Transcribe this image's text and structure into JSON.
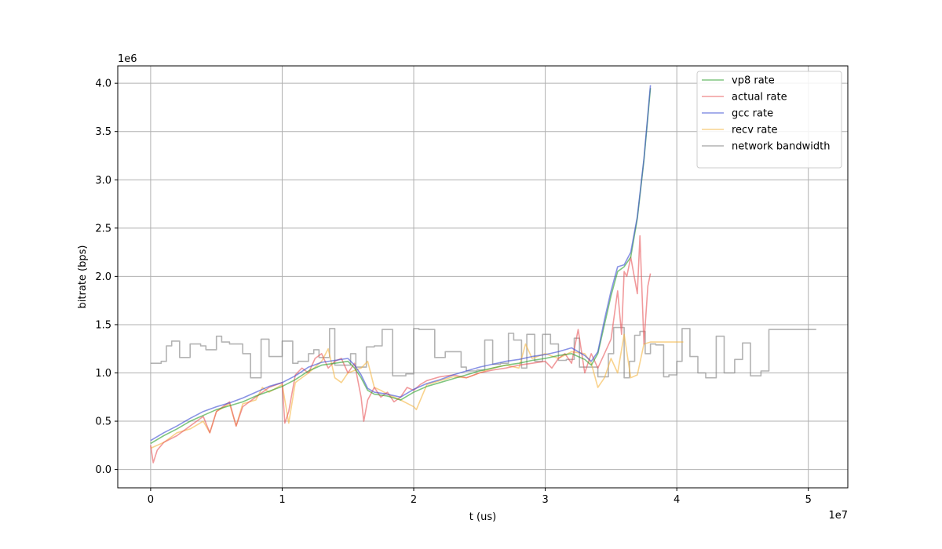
{
  "chart_data": {
    "type": "line",
    "title": "",
    "xlabel": "t (us)",
    "ylabel": "bitrate (bps)",
    "x_offset_label": "1e7",
    "y_offset_label": "1e6",
    "xlim": [
      -0.25,
      5.3
    ],
    "ylim": [
      -0.19,
      4.18
    ],
    "x_ticks": [
      0,
      1,
      2,
      3,
      4,
      5
    ],
    "x_tick_labels": [
      "0",
      "1",
      "2",
      "3",
      "4",
      "5"
    ],
    "y_ticks": [
      0,
      0.5,
      1,
      1.5,
      2,
      2.5,
      3,
      3.5,
      4
    ],
    "y_tick_labels": [
      "0.0",
      "0.5",
      "1.0",
      "1.5",
      "2.0",
      "2.5",
      "3.0",
      "3.5",
      "4.0"
    ],
    "grid": true,
    "legend_position": "top-right",
    "units_note": "x values in units of 1e7 us, y values in units of 1e6 bps",
    "series": [
      {
        "name": "vp8 rate",
        "color": "#2ca02c",
        "x": [
          0,
          0.1,
          0.2,
          0.3,
          0.4,
          0.5,
          0.6,
          0.7,
          0.8,
          0.9,
          1.0,
          1.1,
          1.2,
          1.3,
          1.4,
          1.5,
          1.55,
          1.6,
          1.65,
          1.7,
          1.8,
          1.9,
          2.0,
          2.1,
          2.2,
          2.3,
          2.4,
          2.5,
          2.6,
          2.7,
          2.8,
          2.9,
          3.0,
          3.1,
          3.2,
          3.3,
          3.35,
          3.4,
          3.45,
          3.5,
          3.55,
          3.6,
          3.65,
          3.7,
          3.75,
          3.8
        ],
        "y": [
          0.27,
          0.35,
          0.42,
          0.5,
          0.56,
          0.62,
          0.66,
          0.7,
          0.76,
          0.81,
          0.86,
          0.93,
          1.02,
          1.08,
          1.1,
          1.12,
          1.05,
          0.95,
          0.82,
          0.78,
          0.76,
          0.72,
          0.8,
          0.86,
          0.9,
          0.94,
          0.98,
          1.02,
          1.05,
          1.08,
          1.1,
          1.13,
          1.15,
          1.18,
          1.2,
          1.14,
          1.08,
          1.2,
          1.5,
          1.8,
          2.05,
          2.1,
          2.2,
          2.6,
          3.2,
          3.95
        ]
      },
      {
        "name": "actual rate",
        "color": "#e8575a",
        "x": [
          0,
          0.02,
          0.05,
          0.1,
          0.2,
          0.3,
          0.35,
          0.4,
          0.45,
          0.5,
          0.6,
          0.65,
          0.7,
          0.8,
          0.9,
          1.0,
          1.02,
          1.05,
          1.1,
          1.15,
          1.2,
          1.25,
          1.3,
          1.35,
          1.4,
          1.45,
          1.5,
          1.55,
          1.6,
          1.62,
          1.65,
          1.7,
          1.75,
          1.8,
          1.85,
          1.9,
          1.95,
          2.0,
          2.05,
          2.1,
          2.2,
          2.3,
          2.4,
          2.5,
          2.6,
          2.7,
          2.8,
          2.9,
          3.0,
          3.05,
          3.1,
          3.15,
          3.2,
          3.25,
          3.3,
          3.35,
          3.4,
          3.45,
          3.5,
          3.55,
          3.58,
          3.6,
          3.62,
          3.65,
          3.7,
          3.72,
          3.75,
          3.78,
          3.8
        ],
        "y": [
          0.25,
          0.07,
          0.2,
          0.28,
          0.35,
          0.45,
          0.5,
          0.55,
          0.38,
          0.6,
          0.7,
          0.45,
          0.65,
          0.75,
          0.85,
          0.9,
          0.48,
          0.6,
          0.98,
          1.05,
          1.0,
          1.15,
          1.2,
          1.05,
          1.12,
          1.15,
          1.0,
          1.1,
          0.75,
          0.5,
          0.72,
          0.85,
          0.75,
          0.8,
          0.7,
          0.75,
          0.85,
          0.82,
          0.88,
          0.92,
          0.96,
          0.98,
          0.95,
          1.0,
          1.03,
          1.05,
          1.08,
          1.1,
          1.12,
          1.05,
          1.15,
          1.2,
          1.1,
          1.45,
          1.0,
          1.2,
          1.05,
          1.2,
          1.35,
          1.85,
          1.4,
          2.05,
          2.0,
          2.2,
          1.82,
          2.42,
          1.3,
          1.9,
          2.03
        ]
      },
      {
        "name": "gcc rate",
        "color": "#3b4bd4",
        "x": [
          0,
          0.1,
          0.2,
          0.3,
          0.4,
          0.5,
          0.6,
          0.7,
          0.8,
          0.9,
          1.0,
          1.1,
          1.2,
          1.3,
          1.4,
          1.5,
          1.55,
          1.6,
          1.65,
          1.7,
          1.8,
          1.9,
          2.0,
          2.1,
          2.2,
          2.3,
          2.4,
          2.5,
          2.6,
          2.7,
          2.8,
          2.9,
          3.0,
          3.1,
          3.2,
          3.3,
          3.35,
          3.4,
          3.45,
          3.5,
          3.55,
          3.6,
          3.65,
          3.7,
          3.75,
          3.8
        ],
        "y": [
          0.3,
          0.38,
          0.45,
          0.53,
          0.6,
          0.65,
          0.69,
          0.74,
          0.8,
          0.86,
          0.9,
          0.97,
          1.06,
          1.11,
          1.13,
          1.15,
          1.08,
          0.98,
          0.84,
          0.8,
          0.78,
          0.75,
          0.83,
          0.89,
          0.93,
          0.98,
          1.02,
          1.06,
          1.09,
          1.12,
          1.14,
          1.17,
          1.19,
          1.22,
          1.26,
          1.18,
          1.12,
          1.22,
          1.55,
          1.85,
          2.1,
          2.12,
          2.25,
          2.62,
          3.22,
          3.98
        ]
      },
      {
        "name": "recv rate",
        "color": "#f5b642",
        "x": [
          0,
          0.1,
          0.2,
          0.3,
          0.4,
          0.45,
          0.5,
          0.6,
          0.65,
          0.7,
          0.8,
          0.85,
          0.9,
          1.0,
          1.05,
          1.1,
          1.2,
          1.3,
          1.35,
          1.4,
          1.45,
          1.5,
          1.6,
          1.65,
          1.7,
          1.75,
          1.8,
          1.9,
          2.0,
          2.02,
          2.1,
          2.2,
          2.3,
          2.4,
          2.5,
          2.6,
          2.7,
          2.8,
          2.85,
          2.9,
          3.0,
          3.1,
          3.2,
          3.3,
          3.35,
          3.4,
          3.45,
          3.5,
          3.55,
          3.6,
          3.65,
          3.7,
          3.75,
          3.8,
          4.0,
          4.05
        ],
        "y": [
          0.22,
          0.28,
          0.38,
          0.42,
          0.5,
          0.38,
          0.6,
          0.68,
          0.45,
          0.68,
          0.72,
          0.85,
          0.8,
          0.88,
          0.48,
          0.9,
          1.0,
          1.12,
          1.25,
          0.95,
          0.9,
          1.0,
          1.05,
          1.12,
          0.85,
          0.82,
          0.78,
          0.72,
          0.65,
          0.62,
          0.88,
          0.92,
          0.96,
          0.95,
          1.0,
          1.05,
          1.08,
          1.05,
          1.3,
          1.15,
          1.2,
          1.15,
          1.22,
          1.2,
          1.1,
          0.85,
          0.95,
          1.15,
          1.0,
          1.4,
          0.95,
          0.98,
          1.3,
          1.32,
          1.32,
          1.32
        ]
      },
      {
        "name": "network bandwidth",
        "color": "#808080",
        "step": true,
        "x": [
          0,
          0.02,
          0.08,
          0.12,
          0.16,
          0.22,
          0.28,
          0.3,
          0.38,
          0.42,
          0.5,
          0.54,
          0.6,
          0.7,
          0.76,
          0.8,
          0.84,
          0.9,
          0.96,
          1.0,
          1.04,
          1.08,
          1.12,
          1.2,
          1.24,
          1.28,
          1.36,
          1.4,
          1.44,
          1.48,
          1.52,
          1.56,
          1.6,
          1.64,
          1.7,
          1.76,
          1.84,
          1.88,
          1.94,
          2.0,
          2.04,
          2.1,
          2.16,
          2.24,
          2.3,
          2.36,
          2.4,
          2.48,
          2.54,
          2.6,
          2.66,
          2.72,
          2.76,
          2.82,
          2.86,
          2.92,
          2.98,
          3.04,
          3.1,
          3.16,
          3.22,
          3.26,
          3.32,
          3.36,
          3.4,
          3.44,
          3.48,
          3.52,
          3.56,
          3.6,
          3.64,
          3.68,
          3.72,
          3.76,
          3.8,
          3.84,
          3.9,
          3.94,
          4.0,
          4.04,
          4.1,
          4.16,
          4.22,
          4.3,
          4.36,
          4.44,
          4.5,
          4.56,
          4.64,
          4.7,
          4.76,
          4.84,
          4.9,
          4.96,
          5.02,
          5.06
        ],
        "y": [
          1.1,
          1.1,
          1.12,
          1.28,
          1.33,
          1.16,
          1.16,
          1.3,
          1.28,
          1.24,
          1.38,
          1.32,
          1.3,
          1.2,
          0.95,
          0.95,
          1.35,
          1.17,
          1.17,
          1.33,
          1.33,
          1.1,
          1.12,
          1.2,
          1.24,
          1.16,
          1.46,
          1.08,
          1.08,
          1.08,
          1.2,
          1.06,
          1.06,
          1.27,
          1.28,
          1.45,
          0.97,
          0.97,
          0.99,
          1.46,
          1.45,
          1.45,
          1.16,
          1.22,
          1.22,
          1.06,
          1.02,
          1.03,
          1.34,
          1.09,
          1.1,
          1.41,
          1.34,
          1.05,
          1.4,
          1.12,
          1.4,
          1.3,
          1.13,
          1.14,
          1.36,
          1.06,
          1.06,
          1.06,
          0.96,
          0.96,
          1.2,
          1.47,
          1.47,
          0.95,
          1.12,
          1.39,
          1.43,
          1.2,
          1.3,
          1.29,
          0.96,
          0.98,
          1.12,
          1.46,
          1.17,
          1.0,
          0.95,
          1.38,
          1.0,
          1.14,
          1.31,
          0.97,
          1.02,
          1.45,
          1.45,
          1.45,
          1.45,
          1.45,
          1.45,
          1.45
        ]
      }
    ]
  }
}
